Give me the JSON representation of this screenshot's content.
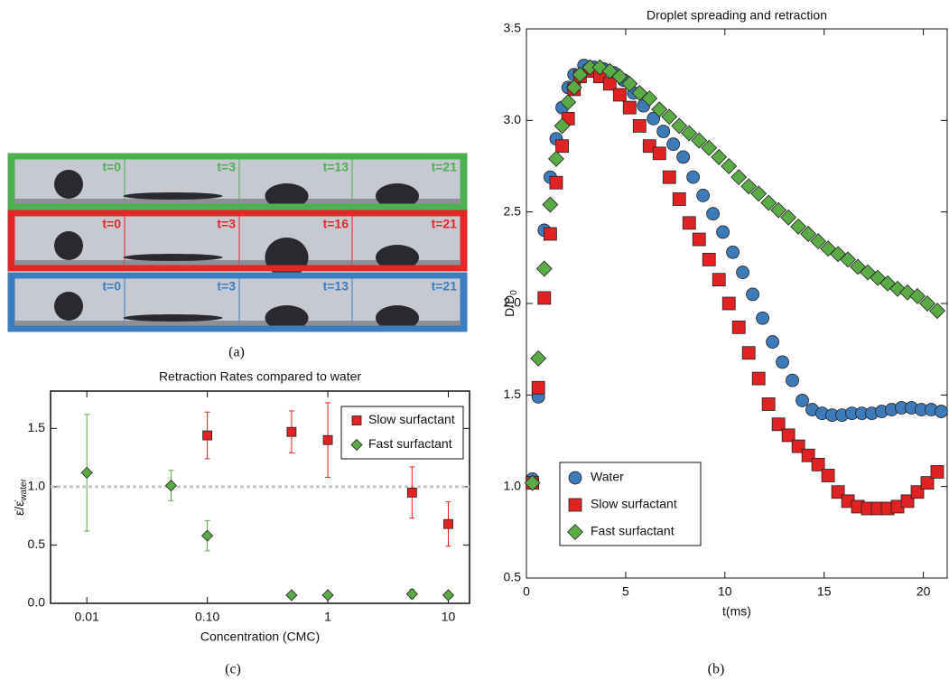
{
  "image_panel": {
    "rows": [
      {
        "color": "#4caf50",
        "labels": [
          "t=0",
          "t=3",
          "t=13",
          "t=21"
        ]
      },
      {
        "color": "#e32626",
        "labels": [
          "t=0",
          "t=3",
          "t=16",
          "t=21"
        ]
      },
      {
        "color": "#3a7ebf",
        "labels": [
          "t=0",
          "t=3",
          "t=13",
          "t=21"
        ]
      }
    ],
    "caption": "(a)"
  },
  "chart_data": [
    {
      "type": "scatter",
      "title": "Droplet spreading and retraction",
      "caption": "(b)",
      "xlabel": "t(ms)",
      "ylabel": "D/D",
      "ylabel_sub": "0",
      "xlim": [
        0,
        21.2
      ],
      "ylim": [
        0.5,
        3.5
      ],
      "xticks": [
        0,
        5,
        10,
        15,
        20
      ],
      "yticks": [
        0.5,
        {
          "value": 1,
          "label": "1.0"
        },
        1.5,
        {
          "value": 2,
          "label": "2.0"
        },
        2.5,
        {
          "value": 3,
          "label": "3.0"
        },
        3.5
      ],
      "legend": "bottom-left",
      "series": [
        {
          "name": "Water",
          "color": "#3d7ab8",
          "marker": "circle",
          "x": [
            0.3,
            0.6,
            0.9,
            1.2,
            1.5,
            1.8,
            2.1,
            2.4,
            2.9,
            3.4,
            3.9,
            4.4,
            4.9,
            5.4,
            5.9,
            6.4,
            6.9,
            7.4,
            7.9,
            8.4,
            8.9,
            9.4,
            9.9,
            10.4,
            10.9,
            11.4,
            11.9,
            12.4,
            12.9,
            13.4,
            13.9,
            14.4,
            14.9,
            15.4,
            15.9,
            16.4,
            16.9,
            17.4,
            17.9,
            18.4,
            18.9,
            19.4,
            19.9,
            20.4,
            20.9
          ],
          "values": [
            1.04,
            1.49,
            2.4,
            2.69,
            2.9,
            3.07,
            3.18,
            3.25,
            3.3,
            3.29,
            3.28,
            3.26,
            3.22,
            3.15,
            3.08,
            3.01,
            2.94,
            2.87,
            2.8,
            2.69,
            2.59,
            2.49,
            2.39,
            2.28,
            2.17,
            2.05,
            1.92,
            1.79,
            1.68,
            1.58,
            1.47,
            1.42,
            1.4,
            1.39,
            1.39,
            1.4,
            1.4,
            1.4,
            1.41,
            1.42,
            1.43,
            1.43,
            1.42,
            1.42,
            1.41
          ]
        },
        {
          "name": "Slow surfactant",
          "color": "#e02222",
          "marker": "square",
          "x": [
            0.3,
            0.6,
            0.9,
            1.2,
            1.5,
            1.8,
            2.1,
            2.4,
            2.7,
            3.2,
            3.7,
            4.2,
            4.7,
            5.2,
            5.7,
            6.2,
            6.7,
            7.2,
            7.7,
            8.2,
            8.7,
            9.2,
            9.7,
            10.2,
            10.7,
            11.2,
            11.7,
            12.2,
            12.7,
            13.2,
            13.7,
            14.2,
            14.7,
            15.2,
            15.7,
            16.2,
            16.7,
            17.2,
            17.7,
            18.2,
            18.7,
            19.2,
            19.7,
            20.2,
            20.7
          ],
          "values": [
            1.02,
            1.54,
            2.03,
            2.38,
            2.66,
            2.86,
            3.01,
            3.17,
            3.24,
            3.27,
            3.24,
            3.2,
            3.14,
            3.07,
            2.97,
            2.86,
            2.82,
            2.69,
            2.57,
            2.44,
            2.35,
            2.24,
            2.13,
            2.0,
            1.87,
            1.73,
            1.59,
            1.45,
            1.34,
            1.28,
            1.22,
            1.17,
            1.12,
            1.06,
            0.97,
            0.92,
            0.89,
            0.88,
            0.88,
            0.88,
            0.89,
            0.92,
            0.97,
            1.02,
            1.08
          ]
        },
        {
          "name": "Fast surfactant",
          "color": "#5aaa46",
          "marker": "diamond",
          "x": [
            0.3,
            0.6,
            0.9,
            1.2,
            1.5,
            1.8,
            2.1,
            2.4,
            2.7,
            3.2,
            3.7,
            4.2,
            4.7,
            5.2,
            5.7,
            6.2,
            6.7,
            7.2,
            7.7,
            8.2,
            8.7,
            9.2,
            9.7,
            10.2,
            10.7,
            11.2,
            11.7,
            12.2,
            12.7,
            13.2,
            13.7,
            14.2,
            14.7,
            15.2,
            15.7,
            16.2,
            16.7,
            17.2,
            17.7,
            18.2,
            18.7,
            19.2,
            19.7,
            20.2,
            20.7
          ],
          "values": [
            1.02,
            1.7,
            2.19,
            2.54,
            2.79,
            2.97,
            3.1,
            3.18,
            3.25,
            3.29,
            3.29,
            3.27,
            3.24,
            3.2,
            3.15,
            3.12,
            3.06,
            3.02,
            2.97,
            2.93,
            2.89,
            2.85,
            2.8,
            2.75,
            2.69,
            2.64,
            2.6,
            2.55,
            2.51,
            2.47,
            2.42,
            2.38,
            2.34,
            2.3,
            2.27,
            2.24,
            2.2,
            2.17,
            2.14,
            2.11,
            2.08,
            2.06,
            2.04,
            2.0,
            1.96
          ]
        }
      ]
    },
    {
      "type": "scatter",
      "title": "Retraction Rates compared to water",
      "caption": "(c)",
      "xlabel": "Concentration (CMC)",
      "ylabel": "ε̇/ε̇",
      "ylabel_sub": "water",
      "xlog": true,
      "xlim": [
        0.005,
        15
      ],
      "ylim": [
        0,
        1.82
      ],
      "xticks": [
        0.01,
        {
          "value": 0.1,
          "label": "0.10"
        },
        1,
        10
      ],
      "yticks": [
        {
          "value": 0,
          "label": "0.0"
        },
        0.5,
        {
          "value": 1,
          "label": "1.0"
        },
        1.5
      ],
      "reference_line": 1,
      "legend": "top-right",
      "series": [
        {
          "name": "Slow surfactant",
          "color": "#e02222",
          "marker": "square",
          "x": [
            0.1,
            0.5,
            1,
            5,
            10
          ],
          "values": [
            1.44,
            1.47,
            1.4,
            0.95,
            0.68
          ],
          "errors": [
            0.2,
            0.18,
            0.32,
            0.22,
            0.19
          ]
        },
        {
          "name": "Fast surfactant",
          "color": "#5aaa46",
          "marker": "diamond",
          "x": [
            0.01,
            0.05,
            0.1,
            0.5,
            1,
            5,
            10
          ],
          "values": [
            1.12,
            1.01,
            0.58,
            0.07,
            0.07,
            0.08,
            0.07
          ],
          "errors": [
            0.5,
            0.13,
            0.13,
            0,
            0,
            0.04,
            0
          ]
        }
      ]
    }
  ]
}
